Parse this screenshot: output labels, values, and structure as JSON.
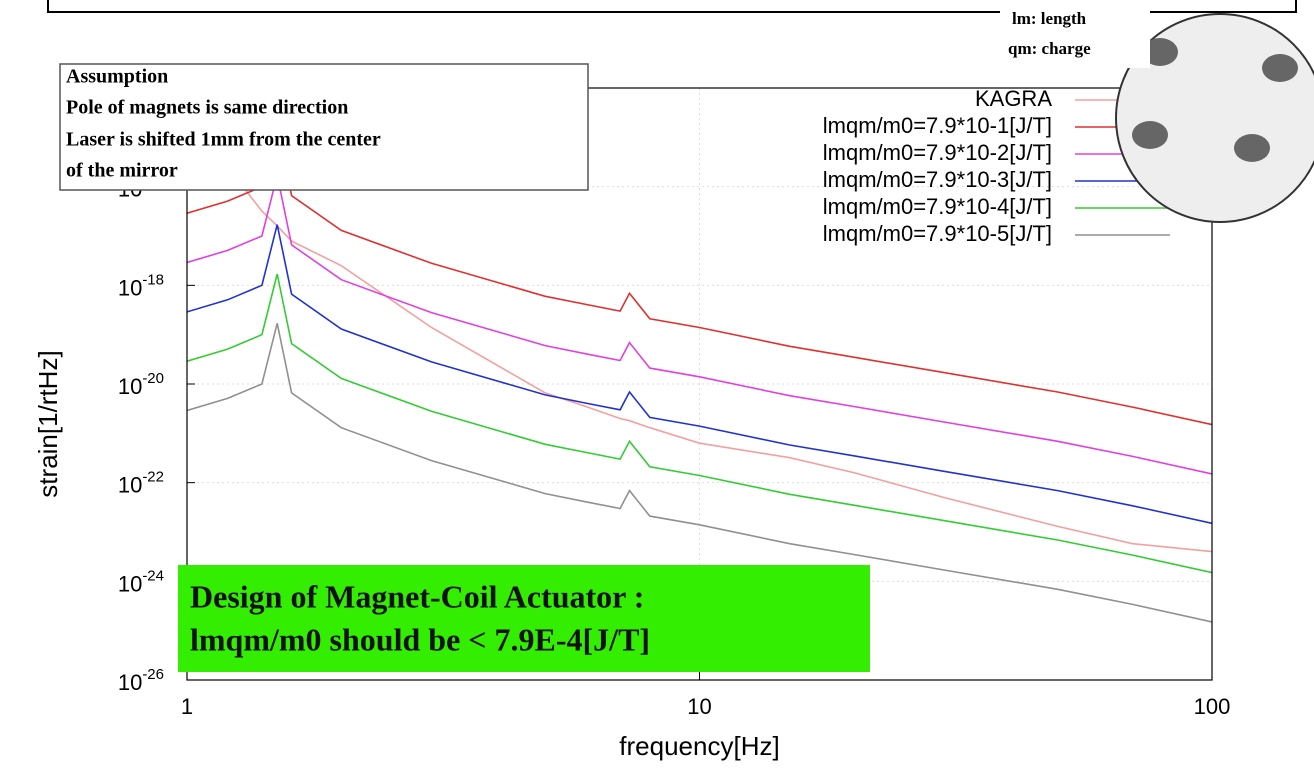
{
  "chart_data": {
    "type": "line",
    "x_label": "frequency[Hz]",
    "y_label": "strain[1/rtHz]",
    "xlog": true,
    "ylog": true,
    "grid": true,
    "legend": "upper right",
    "xlim": [
      1,
      100
    ],
    "ylim": [
      1e-26,
      1e-14
    ],
    "xticks": [
      1,
      10,
      100
    ],
    "yticks": [
      {
        "value": 1e-26,
        "label": "10",
        "exponent": "-26"
      },
      {
        "value": 1e-24,
        "label": "10",
        "exponent": "-24"
      },
      {
        "value": 1e-22,
        "label": "10",
        "exponent": "-22"
      },
      {
        "value": 1e-20,
        "label": "10",
        "exponent": "-20"
      },
      {
        "value": 1e-18,
        "label": "10",
        "exponent": "-18"
      },
      {
        "value": 1e-16,
        "label": "10",
        "exponent": "-16"
      }
    ],
    "x": [
      1,
      1.2,
      1.4,
      1.5,
      1.6,
      2,
      3,
      5,
      6,
      7,
      7.3,
      8,
      10,
      15,
      20,
      30,
      50,
      70,
      100
    ],
    "series": [
      {
        "name": "KAGRA",
        "color": "#f2a0a0",
        "values": [
          2.5e-15,
          2.5e-16,
          3.2e-17,
          1.6e-17,
          7.9e-18,
          2.5e-18,
          1.4e-19,
          6.6e-21,
          3.5e-21,
          2e-21,
          1.8e-21,
          1.3e-21,
          6.3e-22,
          3.2e-22,
          1.6e-22,
          5e-23,
          1.3e-23,
          5.8e-24,
          4e-24
        ]
      },
      {
        "name": "lmqm/m0=7.9*10-1[J/T]",
        "color": "#e03030",
        "values": [
          2.9e-17,
          5.1e-17,
          1e-16,
          1.7e-15,
          6.6e-17,
          1.3e-17,
          2.8e-18,
          6e-19,
          4.1e-19,
          3e-19,
          6.9e-19,
          2.1e-19,
          1.4e-19,
          5.8e-20,
          3.5e-20,
          1.7e-20,
          6.9e-21,
          3.4e-21,
          1.5e-21
        ]
      },
      {
        "name": "lmqm/m0=7.9*10-2[J/T]",
        "color": "#e040e0",
        "values": [
          2.9e-18,
          5.1e-18,
          1e-17,
          1.7e-16,
          6.6e-18,
          1.3e-18,
          2.8e-19,
          6e-20,
          4.1e-20,
          3e-20,
          6.9e-20,
          2.1e-20,
          1.4e-20,
          5.8e-21,
          3.5e-21,
          1.7e-21,
          6.9e-22,
          3.4e-22,
          1.5e-22
        ]
      },
      {
        "name": "lmqm/m0=7.9*10-3[J/T]",
        "color": "#2233cc",
        "values": [
          2.9e-19,
          5.1e-19,
          1e-18,
          1.7e-17,
          6.6e-19,
          1.3e-19,
          2.8e-20,
          6e-21,
          4.1e-21,
          3e-21,
          6.9e-21,
          2.1e-21,
          1.4e-21,
          5.8e-22,
          3.5e-22,
          1.7e-22,
          6.9e-23,
          3.4e-23,
          1.5e-23
        ]
      },
      {
        "name": "lmqm/m0=7.9*10-4[J/T]",
        "color": "#33cc33",
        "values": [
          2.9e-20,
          5.1e-20,
          1e-19,
          1.7e-18,
          6.6e-20,
          1.3e-20,
          2.8e-21,
          6e-22,
          4.1e-22,
          3e-22,
          6.9e-22,
          2.1e-22,
          1.4e-22,
          5.8e-23,
          3.5e-23,
          1.7e-23,
          6.9e-24,
          3.4e-24,
          1.5e-24
        ]
      },
      {
        "name": "lmqm/m0=7.9*10-5[J/T]",
        "color": "#909090",
        "values": [
          2.9e-21,
          5.1e-21,
          1e-20,
          1.7e-19,
          6.6e-21,
          1.3e-21,
          2.8e-22,
          6e-23,
          4.1e-23,
          3e-23,
          6.9e-23,
          2.1e-23,
          1.4e-23,
          5.8e-24,
          3.5e-24,
          1.7e-24,
          6.9e-25,
          3.4e-25,
          1.5e-25
        ]
      }
    ],
    "annotations": {
      "assumption": [
        "Assumption",
        "Pole of magnets is same direction",
        "Laser is shifted 1mm from the center",
        "of the mirror"
      ],
      "design": [
        "Design of Magnet-Coil Actuator :",
        "lmqm/m0 should be < 7.9E-4[J/T]"
      ],
      "figure_labels": [
        "lm: length",
        "qm: charge"
      ]
    }
  }
}
